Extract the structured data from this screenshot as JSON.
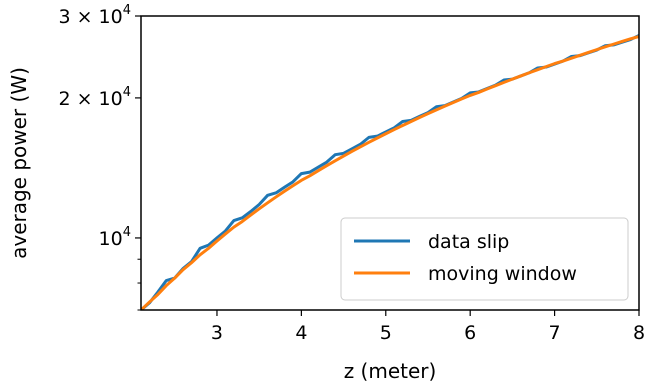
{
  "chart_data": {
    "type": "line",
    "xlabel": "z (meter)",
    "ylabel": "average power (W)",
    "xlim": [
      2.1,
      8.0
    ],
    "ylim": [
      7000,
      30000
    ],
    "yscale": "log",
    "grid": false,
    "legend_position": "lower-right",
    "x_ticks": [
      3,
      4,
      5,
      6,
      7,
      8
    ],
    "x_tick_labels": [
      "3",
      "4",
      "5",
      "6",
      "7",
      "8"
    ],
    "y_ticks": [
      {
        "value": 10000,
        "mantissa": "10",
        "exponent": "4"
      },
      {
        "value": 20000,
        "mantissa": "2 × 10",
        "exponent": "4"
      },
      {
        "value": 30000,
        "mantissa": "3 × 10",
        "exponent": "4"
      }
    ],
    "y_minor_ticks": [
      7000,
      8000,
      9000
    ],
    "series": [
      {
        "name": "data slip",
        "color": "#1f77b4",
        "x": [
          2.1,
          2.2,
          2.3,
          2.4,
          2.5,
          2.6,
          2.7,
          2.8,
          2.9,
          3.0,
          3.1,
          3.2,
          3.3,
          3.4,
          3.5,
          3.6,
          3.7,
          3.8,
          3.9,
          4.0,
          4.1,
          4.2,
          4.3,
          4.4,
          4.5,
          4.6,
          4.7,
          4.8,
          4.9,
          5.0,
          5.1,
          5.2,
          5.3,
          5.4,
          5.5,
          5.6,
          5.7,
          5.8,
          5.9,
          6.0,
          6.1,
          6.2,
          6.3,
          6.4,
          6.5,
          6.6,
          6.7,
          6.8,
          6.9,
          7.0,
          7.1,
          7.2,
          7.3,
          7.4,
          7.5,
          7.6,
          7.7,
          7.8,
          7.9,
          8.0
        ],
        "y": [
          7000,
          7250,
          7650,
          8100,
          8200,
          8600,
          8900,
          9500,
          9650,
          10000,
          10350,
          10900,
          11050,
          11400,
          11800,
          12350,
          12500,
          12850,
          13200,
          13750,
          13850,
          14200,
          14550,
          15100,
          15200,
          15550,
          15900,
          16450,
          16550,
          16900,
          17250,
          17800,
          17900,
          18250,
          18600,
          19150,
          19250,
          19600,
          19950,
          20500,
          20600,
          20950,
          21300,
          21850,
          21950,
          22300,
          22650,
          23200,
          23300,
          23650,
          24000,
          24550,
          24650,
          25000,
          25350,
          25900,
          26000,
          26350,
          26700,
          27250
        ]
      },
      {
        "name": "moving window",
        "color": "#ff7f0e",
        "x": [
          2.1,
          2.2,
          2.3,
          2.4,
          2.5,
          2.6,
          2.7,
          2.8,
          2.9,
          3.0,
          3.1,
          3.2,
          3.3,
          3.4,
          3.5,
          3.6,
          3.7,
          3.8,
          3.9,
          4.0,
          4.1,
          4.2,
          4.3,
          4.4,
          4.5,
          4.6,
          4.7,
          4.8,
          4.9,
          5.0,
          5.1,
          5.2,
          5.3,
          5.4,
          5.5,
          5.6,
          5.7,
          5.8,
          5.9,
          6.0,
          6.1,
          6.2,
          6.3,
          6.4,
          6.5,
          6.6,
          6.7,
          6.8,
          6.9,
          7.0,
          7.1,
          7.2,
          7.3,
          7.4,
          7.5,
          7.6,
          7.7,
          7.8,
          7.9,
          8.0
        ],
        "y": [
          7000,
          7280,
          7560,
          7900,
          8200,
          8550,
          8850,
          9200,
          9500,
          9850,
          10200,
          10550,
          10850,
          11200,
          11550,
          11900,
          12250,
          12600,
          12950,
          13300,
          13600,
          13950,
          14300,
          14650,
          15000,
          15350,
          15700,
          16050,
          16400,
          16750,
          17100,
          17450,
          17800,
          18150,
          18500,
          18850,
          19200,
          19550,
          19900,
          20250,
          20550,
          20900,
          21250,
          21600,
          21950,
          22300,
          22650,
          23000,
          23350,
          23700,
          24000,
          24350,
          24700,
          25050,
          25400,
          25750,
          26100,
          26450,
          26800,
          27100
        ]
      }
    ]
  }
}
